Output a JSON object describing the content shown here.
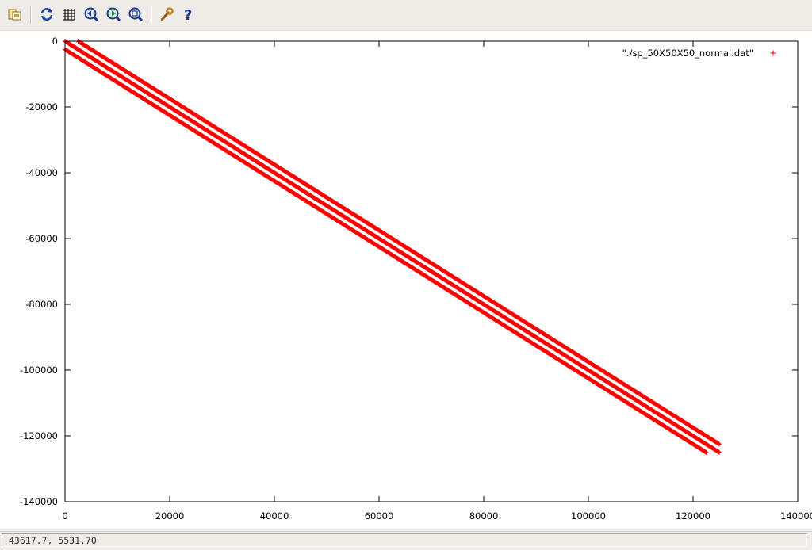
{
  "toolbar": {
    "buttons": [
      {
        "name": "export-icon"
      },
      {
        "name": "replot-icon"
      },
      {
        "name": "grid-icon"
      },
      {
        "name": "zoom-previous-icon"
      },
      {
        "name": "zoom-next-icon"
      },
      {
        "name": "autoscale-icon"
      },
      {
        "name": "options-icon"
      },
      {
        "name": "help-icon"
      }
    ]
  },
  "status": {
    "coordinates": "43617.7,  5531.70"
  },
  "chart_data": {
    "type": "scatter",
    "point_color": "#ff0000",
    "xlim": [
      0,
      140000
    ],
    "ylim": [
      -140000,
      0
    ],
    "x_ticks": [
      0,
      20000,
      40000,
      60000,
      80000,
      100000,
      120000,
      140000
    ],
    "y_ticks": [
      0,
      -20000,
      -40000,
      -60000,
      -80000,
      -100000,
      -120000,
      -140000
    ],
    "legend": {
      "position": "top-right",
      "marker": "+"
    },
    "series": [
      {
        "name": "\"./sp_50X50X50_normal.dat\"",
        "bands": [
          {
            "x": [
              2500,
              125000
            ],
            "y": [
              0,
              -122500
            ]
          },
          {
            "x": [
              0,
              125000
            ],
            "y": [
              0,
              -125000
            ]
          },
          {
            "x": [
              0,
              122500
            ],
            "y": [
              -2500,
              -125000
            ]
          }
        ]
      }
    ]
  }
}
